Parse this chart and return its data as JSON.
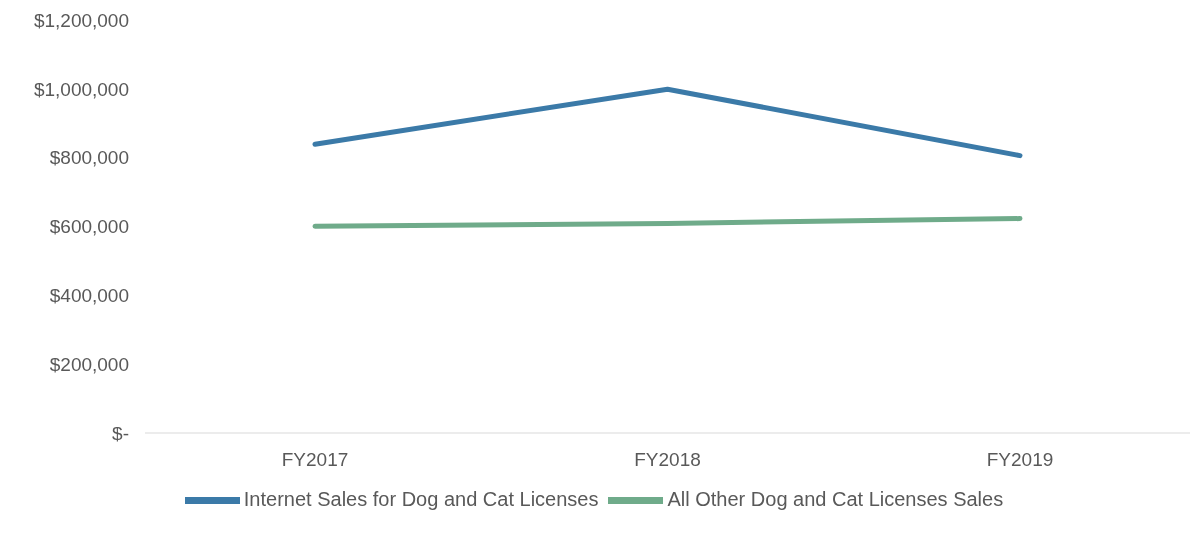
{
  "chart_data": {
    "type": "line",
    "categories": [
      "FY2017",
      "FY2018",
      "FY2019"
    ],
    "series": [
      {
        "name": "Internet Sales for Dog and Cat Licenses",
        "color": "#3b7aa8",
        "values": [
          839000,
          999000,
          806000
        ]
      },
      {
        "name": "All Other Dog and Cat Licenses Sales",
        "color": "#6fab8a",
        "values": [
          601000,
          609000,
          623000
        ]
      }
    ],
    "ylim": [
      0,
      1200000
    ],
    "yticks": [
      {
        "value": 0,
        "label": "$-"
      },
      {
        "value": 200000,
        "label": "$200,000"
      },
      {
        "value": 400000,
        "label": "$400,000"
      },
      {
        "value": 600000,
        "label": "$600,000"
      },
      {
        "value": 800000,
        "label": "$800,000"
      },
      {
        "value": 1000000,
        "label": "$1,000,000"
      },
      {
        "value": 1200000,
        "label": "$1,200,000"
      }
    ],
    "grid": false,
    "legend": "bottom",
    "marker": "none",
    "line_style": "solid"
  }
}
